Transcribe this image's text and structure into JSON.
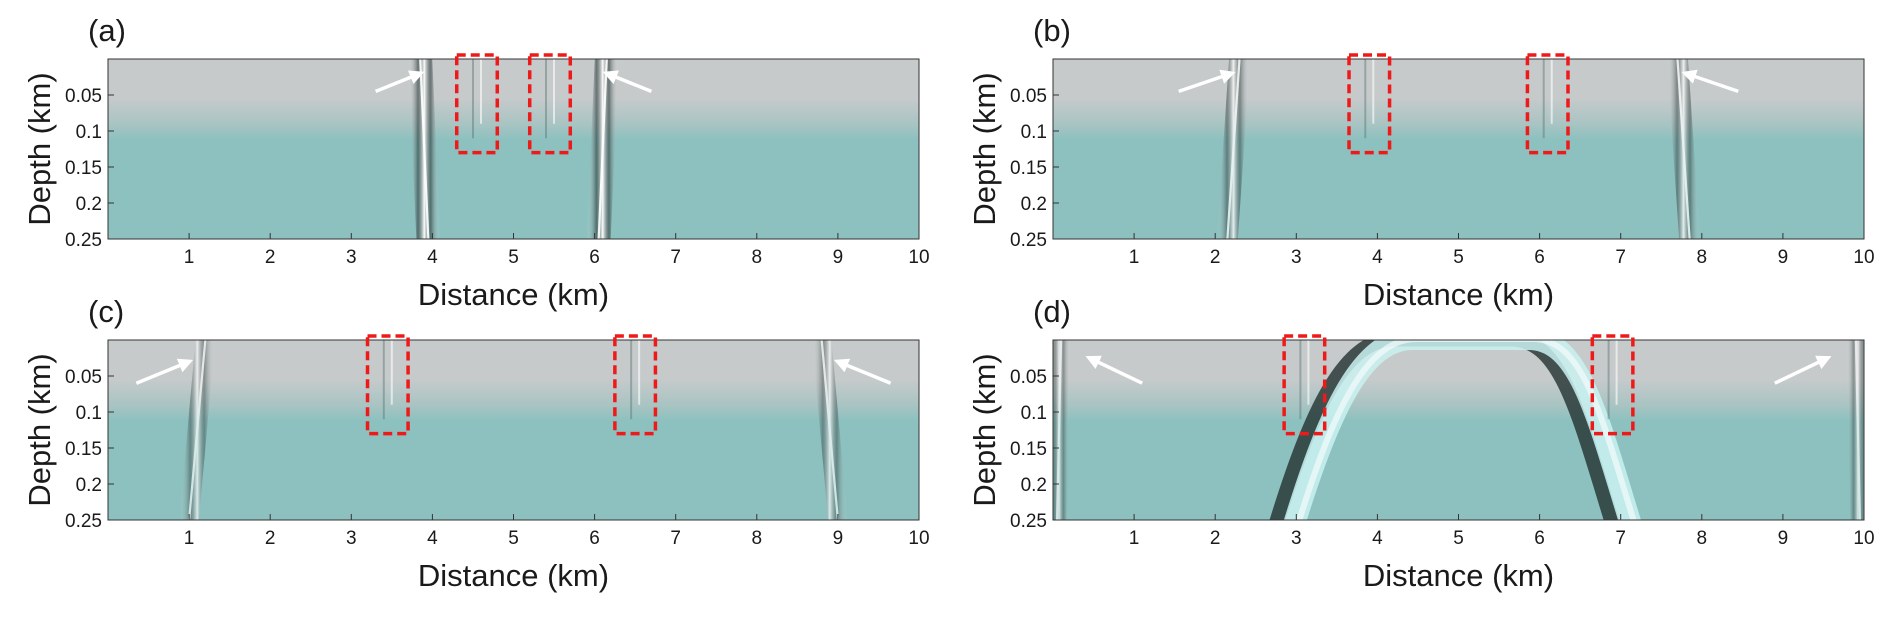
{
  "colors": {
    "surface_top": "#c6cacb",
    "surface_bottom": "#8cc1bf",
    "wave_light": "#ffffff",
    "wave_dark": "#1f2e2d",
    "box": "#ee1a1a",
    "arrow": "#ffffff"
  },
  "chart_data": [
    {
      "type": "heatmap",
      "label": "(a)",
      "xlabel": "Distance (km)",
      "ylabel": "Depth (km)",
      "xlim": [
        0,
        10
      ],
      "ylim": [
        0.25,
        0
      ],
      "xticks": [
        "1",
        "2",
        "3",
        "4",
        "5",
        "6",
        "7",
        "8",
        "9",
        "10"
      ],
      "yticks": [
        "0.05",
        "0.1",
        "0.15",
        "0.2",
        "0.25"
      ],
      "wavefronts": [
        {
          "x_surface": 3.85,
          "x_bottom": 3.95,
          "strength": 1.0
        },
        {
          "x_surface": 6.15,
          "x_bottom": 6.05,
          "strength": 1.0
        }
      ],
      "boxes": [
        {
          "x0": 4.3,
          "x1": 4.8,
          "d0": 0.0,
          "d1": 0.13
        },
        {
          "x0": 5.2,
          "x1": 5.7,
          "d0": 0.0,
          "d1": 0.13
        }
      ],
      "arrows": [
        {
          "x_tail": 3.3,
          "d_tail": 0.045,
          "x_head": 3.85,
          "d_head": 0.02
        },
        {
          "x_tail": 6.7,
          "d_tail": 0.045,
          "x_head": 6.15,
          "d_head": 0.02
        }
      ]
    },
    {
      "type": "heatmap",
      "label": "(b)",
      "xlabel": "Distance (km)",
      "ylabel": "Depth (km)",
      "xlim": [
        0,
        10
      ],
      "ylim": [
        0.25,
        0
      ],
      "xticks": [
        "1",
        "2",
        "3",
        "4",
        "5",
        "6",
        "7",
        "8",
        "9",
        "10"
      ],
      "yticks": [
        "0.05",
        "0.1",
        "0.15",
        "0.2",
        "0.25"
      ],
      "wavefronts": [
        {
          "x_surface": 2.3,
          "x_bottom": 2.15,
          "strength": 0.7
        },
        {
          "x_surface": 7.7,
          "x_bottom": 7.85,
          "strength": 0.7
        }
      ],
      "boxes": [
        {
          "x0": 3.65,
          "x1": 4.15,
          "d0": 0.0,
          "d1": 0.13
        },
        {
          "x0": 5.85,
          "x1": 6.35,
          "d0": 0.0,
          "d1": 0.13
        }
      ],
      "arrows": [
        {
          "x_tail": 1.55,
          "d_tail": 0.045,
          "x_head": 2.2,
          "d_head": 0.02
        },
        {
          "x_tail": 8.45,
          "d_tail": 0.045,
          "x_head": 7.8,
          "d_head": 0.02
        }
      ]
    },
    {
      "type": "heatmap",
      "label": "(c)",
      "xlabel": "Distance (km)",
      "ylabel": "Depth (km)",
      "xlim": [
        0,
        10
      ],
      "ylim": [
        0.25,
        0
      ],
      "xticks": [
        "1",
        "2",
        "3",
        "4",
        "5",
        "6",
        "7",
        "8",
        "9",
        "10"
      ],
      "yticks": [
        "0.05",
        "0.1",
        "0.15",
        "0.2",
        "0.25"
      ],
      "wavefronts": [
        {
          "x_surface": 1.2,
          "x_bottom": 1.0,
          "strength": 0.55
        },
        {
          "x_surface": 8.8,
          "x_bottom": 9.0,
          "strength": 0.55
        }
      ],
      "boxes": [
        {
          "x0": 3.2,
          "x1": 3.7,
          "d0": 0.0,
          "d1": 0.13
        },
        {
          "x0": 6.25,
          "x1": 6.75,
          "d0": 0.0,
          "d1": 0.13
        }
      ],
      "arrows": [
        {
          "x_tail": 0.35,
          "d_tail": 0.06,
          "x_head": 1.0,
          "d_head": 0.03
        },
        {
          "x_tail": 9.65,
          "d_tail": 0.06,
          "x_head": 9.0,
          "d_head": 0.03
        }
      ]
    },
    {
      "type": "heatmap",
      "label": "(d)",
      "xlabel": "Distance (km)",
      "ylabel": "Depth (km)",
      "xlim": [
        0,
        10
      ],
      "ylim": [
        0.25,
        0
      ],
      "xticks": [
        "1",
        "2",
        "3",
        "4",
        "5",
        "6",
        "7",
        "8",
        "9",
        "10"
      ],
      "yticks": [
        "0.05",
        "0.1",
        "0.15",
        "0.2",
        "0.25"
      ],
      "wavefronts": [
        {
          "x_surface": 0.1,
          "x_bottom": 0.05,
          "strength": 0.5
        },
        {
          "x_surface": 9.9,
          "x_bottom": 9.95,
          "strength": 0.5
        }
      ],
      "arch": {
        "x_left_bottom": 2.85,
        "x_apex_left": 4.0,
        "x_apex_right": 6.05,
        "x_right_bottom": 7.0
      },
      "boxes": [
        {
          "x0": 2.85,
          "x1": 3.35,
          "d0": 0.0,
          "d1": 0.13
        },
        {
          "x0": 6.65,
          "x1": 7.15,
          "d0": 0.0,
          "d1": 0.13
        }
      ],
      "arrows": [
        {
          "x_tail": 1.1,
          "d_tail": 0.06,
          "x_head": 0.45,
          "d_head": 0.025
        },
        {
          "x_tail": 8.9,
          "d_tail": 0.06,
          "x_head": 9.55,
          "d_head": 0.025
        }
      ]
    }
  ]
}
